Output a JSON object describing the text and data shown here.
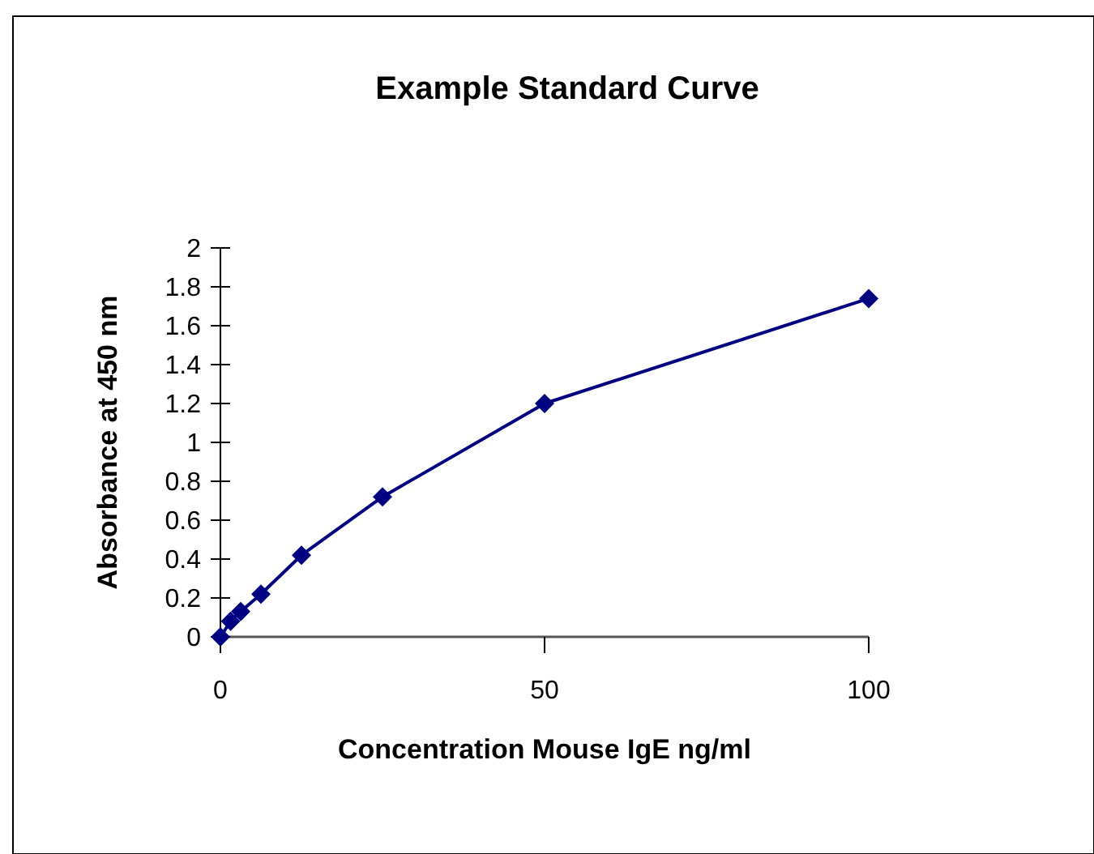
{
  "chart_data": {
    "type": "line",
    "title": "Example Standard Curve",
    "xlabel": "Concentration Mouse IgE ng/ml",
    "ylabel": "Absorbance at 450 nm",
    "x": [
      0,
      1.56,
      3.125,
      6.25,
      12.5,
      25,
      50,
      100
    ],
    "series": [
      {
        "color": "#000080",
        "values": [
          0,
          0.08,
          0.13,
          0.22,
          0.42,
          0.72,
          1.2,
          1.74
        ]
      }
    ],
    "xlim": [
      0,
      100
    ],
    "xticks": [
      0,
      50,
      100
    ],
    "ylim": [
      0,
      2
    ],
    "yticks": [
      0,
      0.2,
      0.4,
      0.6,
      0.8,
      1,
      1.2,
      1.4,
      1.6,
      1.8,
      2
    ],
    "marker": "diamond",
    "line_style": "solid"
  }
}
